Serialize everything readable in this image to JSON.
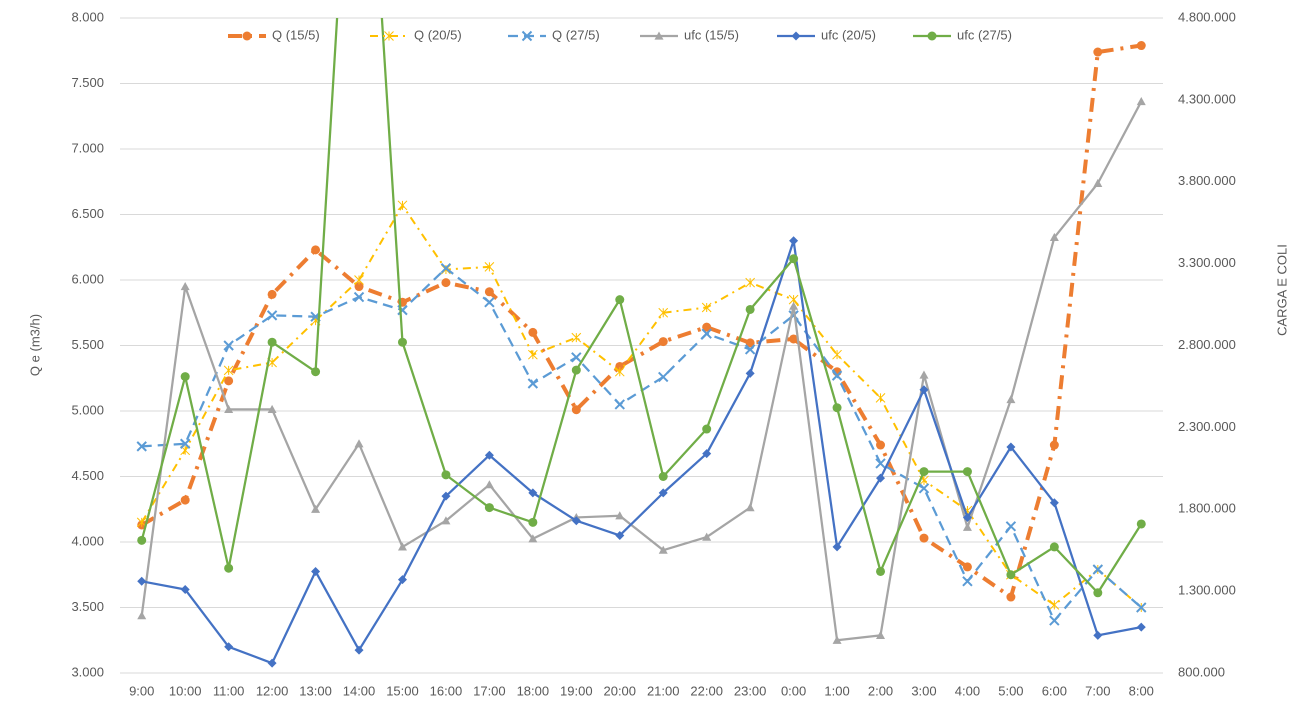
{
  "chart_data": {
    "type": "line",
    "categories": [
      "9:00",
      "10:00",
      "11:00",
      "12:00",
      "13:00",
      "14:00",
      "15:00",
      "16:00",
      "17:00",
      "18:00",
      "19:00",
      "20:00",
      "21:00",
      "22:00",
      "23:00",
      "0:00",
      "1:00",
      "2:00",
      "3:00",
      "4:00",
      "5:00",
      "6:00",
      "7:00",
      "8:00"
    ],
    "y_label": "Q e (m3/h)",
    "y2_label": "CARGA E COLI",
    "ylim": [
      3,
      8
    ],
    "yticks": [
      {
        "value": 3,
        "label": "3.000"
      },
      {
        "value": 3.5,
        "label": "3.500"
      },
      {
        "value": 4,
        "label": "4.000"
      },
      {
        "value": 4.5,
        "label": "4.500"
      },
      {
        "value": 5,
        "label": "5.000"
      },
      {
        "value": 5.5,
        "label": "5.500"
      },
      {
        "value": 6,
        "label": "6.000"
      },
      {
        "value": 6.5,
        "label": "6.500"
      },
      {
        "value": 7,
        "label": "7.000"
      },
      {
        "value": 7.5,
        "label": "7.500"
      },
      {
        "value": 8,
        "label": "8.000"
      }
    ],
    "y2lim": [
      800000,
      4800000
    ],
    "y2ticks": [
      {
        "value": 800000,
        "label": "800.000"
      },
      {
        "value": 1300000,
        "label": "1.300.000"
      },
      {
        "value": 1800000,
        "label": "1.800.000"
      },
      {
        "value": 2300000,
        "label": "2.300.000"
      },
      {
        "value": 2800000,
        "label": "2.800.000"
      },
      {
        "value": 3300000,
        "label": "3.300.000"
      },
      {
        "value": 3800000,
        "label": "3.800.000"
      },
      {
        "value": 4300000,
        "label": "4.300.000"
      },
      {
        "value": 4800000,
        "label": "4.800.000"
      }
    ],
    "grid": true,
    "legend": "top",
    "series": [
      {
        "name": "Q (15/5)",
        "color": "#ed7d31",
        "marker": "circle",
        "line_style": "dash-dot-thick",
        "values": [
          4.13,
          4.32,
          5.23,
          5.89,
          6.23,
          5.95,
          5.83,
          5.98,
          5.91,
          5.6,
          5.01,
          5.34,
          5.53,
          5.64,
          5.52,
          5.55,
          5.3,
          4.74,
          4.03,
          3.81,
          3.58,
          4.74,
          7.74,
          7.79
        ]
      },
      {
        "name": "Q (20/5)",
        "color": "#ffc000",
        "marker": "star",
        "line_style": "dash-dot",
        "values": [
          4.15,
          4.7,
          5.31,
          5.37,
          5.69,
          6.0,
          6.57,
          6.08,
          6.1,
          5.43,
          5.56,
          5.3,
          5.75,
          5.79,
          5.98,
          5.85,
          5.43,
          5.1,
          4.47,
          4.24,
          3.75,
          3.52,
          3.79,
          3.5
        ]
      },
      {
        "name": "Q (27/5)",
        "color": "#5b9bd5",
        "marker": "x",
        "line_style": "dash",
        "values": [
          4.73,
          4.75,
          5.5,
          5.73,
          5.72,
          5.87,
          5.77,
          6.09,
          5.83,
          5.21,
          5.41,
          5.05,
          5.26,
          5.59,
          5.47,
          5.73,
          5.27,
          4.6,
          4.41,
          3.7,
          4.12,
          3.4,
          3.79,
          3.5
        ]
      },
      {
        "name": "ufc (15/5)",
        "color": "#a5a5a5",
        "marker": "triangle",
        "line_style": "solid",
        "axis": "y2",
        "values": [
          1150000,
          3160000,
          2410000,
          2410000,
          1800000,
          2200000,
          1570000,
          1730000,
          1950000,
          1620000,
          1750000,
          1760000,
          1550000,
          1630000,
          1810000,
          3040000,
          1000000,
          1030000,
          2620000,
          1690000,
          2470000,
          3460000,
          3790000,
          4290000
        ]
      },
      {
        "name": "ufc (20/5)",
        "color": "#4472c4",
        "marker": "diamond",
        "line_style": "solid",
        "axis": "y2",
        "values": [
          1360000,
          1310000,
          960000,
          860000,
          1420000,
          940000,
          1370000,
          1880000,
          2130000,
          1900000,
          1730000,
          1640000,
          1900000,
          2140000,
          2630000,
          3440000,
          1570000,
          1990000,
          2530000,
          1750000,
          2180000,
          1840000,
          1030000,
          1080000
        ]
      },
      {
        "name": "ufc (27/5)",
        "color": "#70ad47",
        "marker": "circle",
        "line_style": "solid",
        "axis": "y2",
        "values": [
          1610000,
          2610000,
          1440000,
          2820000,
          2640000,
          7000000,
          2820000,
          2010000,
          1810000,
          1720000,
          2650000,
          3080000,
          2000000,
          2290000,
          3020000,
          3330000,
          2420000,
          1420000,
          2030000,
          2030000,
          1400000,
          1570000,
          1290000,
          1710000
        ]
      }
    ]
  }
}
